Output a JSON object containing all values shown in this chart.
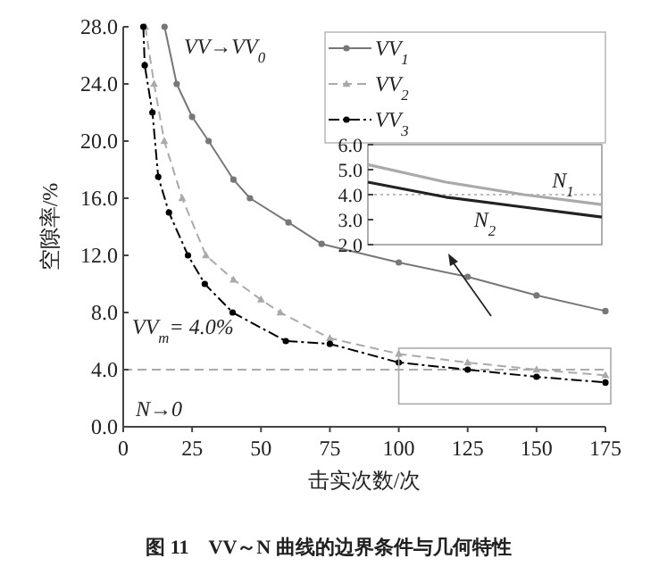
{
  "chart_data": [
    {
      "type": "line",
      "title": "图 11　VV～N 曲线的边界条件与几何特性",
      "xlabel": "击实次数/次",
      "ylabel": "空隙率/%",
      "xlim": [
        0,
        175
      ],
      "ylim": [
        0,
        28
      ],
      "xticks": [
        0,
        25,
        50,
        75,
        100,
        125,
        150,
        175
      ],
      "yticks": [
        {
          "value": 0,
          "label": "0.0"
        },
        {
          "value": 4,
          "label": "4.0"
        },
        {
          "value": 8,
          "label": "8.0"
        },
        {
          "value": 12,
          "label": "12.0"
        },
        {
          "value": 16,
          "label": "16.0"
        },
        {
          "value": 20,
          "label": "20.0"
        },
        {
          "value": 24,
          "label": "24.0"
        },
        {
          "value": 28,
          "label": "28.0"
        }
      ],
      "legend": "top right",
      "grid": false,
      "annotations": [
        "VV→VV$_{0}$",
        "N→0"
      ],
      "ref_lines": [
        {
          "axis": "y",
          "value": 4.0,
          "label": "VV$_{m}$= 4.0%",
          "color": "#aaaaaa",
          "line_style": "dashed"
        }
      ],
      "series": [
        {
          "name": "VV$_{1}$",
          "color": "#777777",
          "marker": "circle",
          "line_style": "solid",
          "x": [
            15,
            19.4,
            25,
            31,
            40,
            46,
            60,
            72,
            100,
            125,
            150,
            175
          ],
          "values": [
            28,
            24,
            21.7,
            20,
            17.3,
            16,
            14.3,
            12.8,
            11.5,
            10.5,
            9.2,
            8.1
          ]
        },
        {
          "name": "VV$_{2}$",
          "color": "#aaaaaa",
          "marker": "triangle",
          "line_style": "dashed",
          "x": [
            8,
            11.2,
            14.9,
            21.4,
            30,
            40,
            50,
            57,
            75,
            100,
            125,
            150,
            175
          ],
          "values": [
            28,
            24,
            20,
            16,
            12,
            10.3,
            8.9,
            8,
            6.2,
            5.1,
            4.5,
            4.0,
            3.6
          ]
        },
        {
          "name": "VV$_{3}$",
          "color": "#000000",
          "marker": "circle",
          "line_style": "dashdot",
          "x": [
            7.3,
            7.8,
            10.6,
            12.7,
            16.6,
            23.5,
            29.6,
            39.7,
            59,
            75,
            100,
            125,
            150,
            175
          ],
          "values": [
            28,
            25.3,
            22,
            17.5,
            15,
            12,
            10,
            8,
            6,
            5.8,
            4.5,
            4.0,
            3.5,
            3.1
          ]
        }
      ]
    },
    {
      "type": "line",
      "categories": [
        null,
        null,
        null,
        null
      ],
      "ylim": [
        2,
        6
      ],
      "tick_labels": "y",
      "yticks": [
        {
          "value": 2,
          "label": "2.0"
        },
        {
          "value": 3,
          "label": "3.0"
        },
        {
          "value": 4,
          "label": "4.0"
        },
        {
          "value": 5,
          "label": "5.0"
        },
        {
          "value": 6,
          "label": "6.0"
        }
      ],
      "ref_lines": [
        {
          "axis": "y",
          "value": 4.0,
          "color": "#bbbbbb",
          "line_style": "dotted"
        }
      ],
      "series": [
        {
          "name": "N$_{1}$",
          "color": "#aaaaaa",
          "values": [
            5.2,
            4.5,
            4.0,
            3.6
          ]
        },
        {
          "name": "N$_{2}$",
          "color": "#222222",
          "values": [
            4.5,
            3.9,
            3.5,
            3.1
          ]
        }
      ]
    }
  ]
}
